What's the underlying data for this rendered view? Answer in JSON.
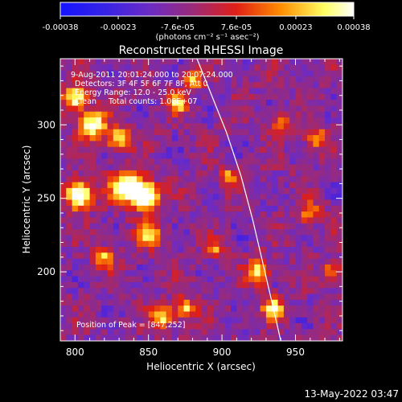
{
  "chart_data": {
    "type": "heatmap",
    "title": "Reconstructed RHESSI Image",
    "xlabel": "Heliocentric X (arcsec)",
    "ylabel": "Heliocentric Y (arcsec)",
    "xlim": [
      790,
      982
    ],
    "ylim": [
      153,
      345
    ],
    "x_ticks": [
      800,
      850,
      900,
      950
    ],
    "y_ticks": [
      200,
      250,
      300
    ],
    "colorbar": {
      "tick_labels": [
        "-0.00038",
        "-0.00023",
        "-7.6e-05",
        "7.6e-05",
        "0.00023",
        "0.00038"
      ],
      "tick_values": [
        -0.00038,
        -0.00023,
        -7.6e-05,
        7.6e-05,
        0.00023,
        0.00038
      ],
      "range": [
        -0.00038,
        0.00038
      ],
      "units_label": "(photons cm⁻² s⁻¹ asec⁻²)",
      "colors": [
        "#1414ff",
        "#6a2bc6",
        "#9b2a79",
        "#e01f16",
        "#ff8c00",
        "#ffff63",
        "#ffffff"
      ]
    },
    "annotations": {
      "time_range": "9-Aug-2011 20:01:24.000 to 20:07:24.000",
      "detectors": "Detectors: 3F 4F 5F 6F 7F 8F, Att 0",
      "energy_range": "Energy Range: 12.0 - 25.0 keV",
      "clean": "Clean     Total counts: 1.08E+07",
      "peak_position": "Position of Peak = [847,252]"
    },
    "peak": [
      847,
      252
    ],
    "limb_curve": [
      [
        883,
        345
      ],
      [
        893,
        320
      ],
      [
        903,
        295
      ],
      [
        913,
        265
      ],
      [
        921,
        235
      ],
      [
        928,
        205
      ],
      [
        935,
        175
      ],
      [
        940,
        153
      ]
    ]
  },
  "footer": {
    "timestamp": "13-May-2022 03:47"
  }
}
